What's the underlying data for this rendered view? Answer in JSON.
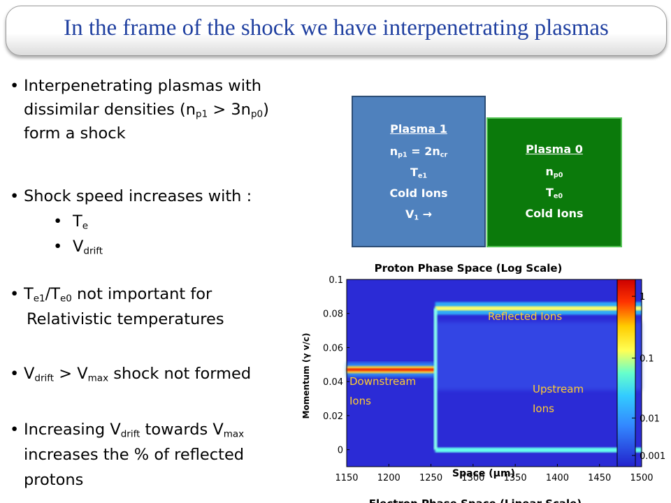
{
  "slide": {
    "title": "In the frame of the shock we have interpenetrating plasmas"
  },
  "bullets": {
    "b1_l1": "Interpenetrating plasmas with",
    "b1_l2a": "dissimilar densities (n",
    "b1_l2sub1": "p1",
    "b1_l2b": " > 3n",
    "b1_l2sub2": "p0",
    "b1_l2c": ")",
    "b1_l3": "form a shock",
    "b2": "Shock speed increases with :",
    "b2a": "T",
    "b2a_sub": "e",
    "b2b": "V",
    "b2b_sub": "drift",
    "b3_a": "T",
    "b3_sub1": "e1",
    "b3_b": "/T",
    "b3_sub2": "e0",
    "b3_c": " not important for",
    "b3_l2": "Relativistic temperatures",
    "b4_a": "V",
    "b4_sub1": "drift",
    "b4_b": " > V",
    "b4_sub2": "max",
    "b4_c": "  shock not formed",
    "b5_a": "Increasing V",
    "b5_sub1": "drift",
    "b5_b": " towards V",
    "b5_sub2": "max",
    "b5_l2": "increases the % of reflected",
    "b5_l3": "protons",
    "bullet_glyph": "•"
  },
  "plasma1": {
    "title": "Plasma 1",
    "n_a": "n",
    "n_sub": "p1",
    "n_b": " = 2n",
    "n_sub2": "cr",
    "t_a": "T",
    "t_sub": "e1",
    "ions": "Cold Ions",
    "v_a": "V",
    "v_sub": "1",
    "v_b": " →",
    "color": "#4f81bd"
  },
  "plasma0": {
    "title": "Plasma 0",
    "n_a": "n",
    "n_sub": "p0",
    "t_a": "T",
    "t_sub": "e0",
    "ions": "Cold Ions",
    "color": "#0b7a0b"
  },
  "chart_data": {
    "type": "heatmap",
    "title": "Proton Phase Space (Log Scale)",
    "xlabel": "Space (μm)",
    "ylabel": "Momentum (γ v/c)",
    "x_ticks": [
      "1150",
      "1200",
      "1250",
      "1300",
      "1350",
      "1400",
      "1450",
      "1500"
    ],
    "y_ticks": [
      "0",
      "0.02",
      "0.04",
      "0.06",
      "0.08",
      "0.1"
    ],
    "xlim": [
      1150,
      1500
    ],
    "ylim": [
      -0.01,
      0.1
    ],
    "colorbar_ticks": [
      "1",
      "0.1",
      "0.01",
      "0.001"
    ],
    "colorbar_scale": "log",
    "shock_position": 1255,
    "annotations": {
      "reflected": "Reflected Ions",
      "downstream_1": "Downstream",
      "downstream_2": "Ions",
      "upstream_1": "Upstream",
      "upstream_2": "Ions"
    },
    "bands": [
      {
        "name": "downstream",
        "x": [
          1150,
          1255
        ],
        "p": 0.047
      },
      {
        "name": "reflected",
        "x": [
          1255,
          1500
        ],
        "p": 0.083
      },
      {
        "name": "upstream",
        "x": [
          1255,
          1500
        ],
        "p": 0.0
      }
    ],
    "next_title_partial": "Electron Phase Space (Linear Scale)"
  }
}
